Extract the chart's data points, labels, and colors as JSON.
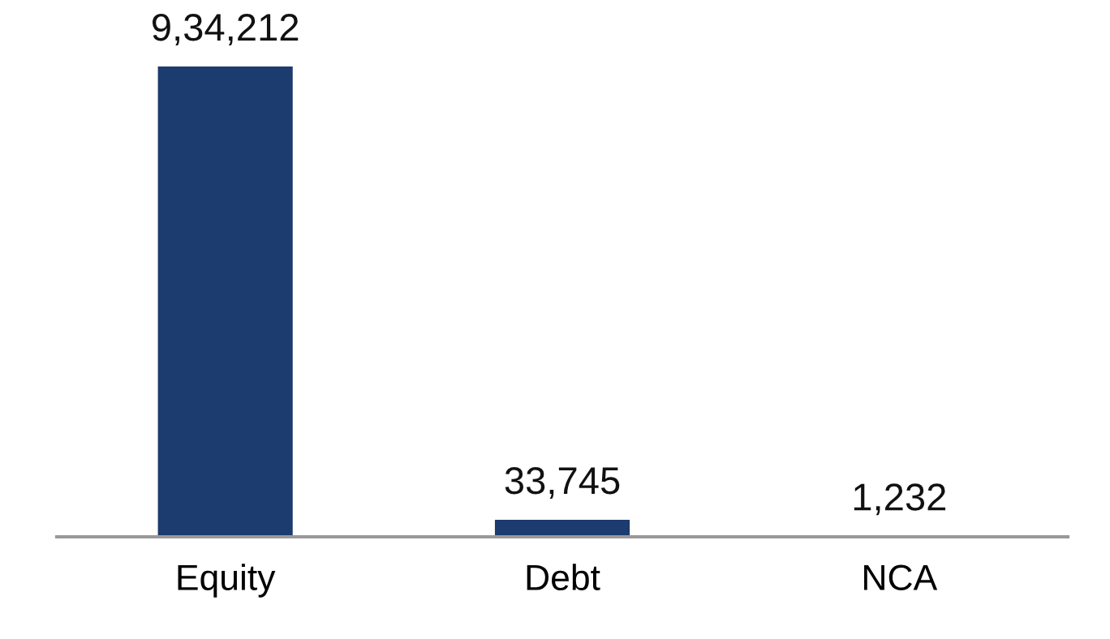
{
  "chart_data": {
    "type": "bar",
    "categories": [
      "Equity",
      "Debt",
      "NCA"
    ],
    "values": [
      934212,
      33745,
      1232
    ],
    "value_labels": [
      "9,34,212",
      "33,745",
      "1,232"
    ],
    "color": "#1c3b6e",
    "grid": false,
    "legend": false
  }
}
